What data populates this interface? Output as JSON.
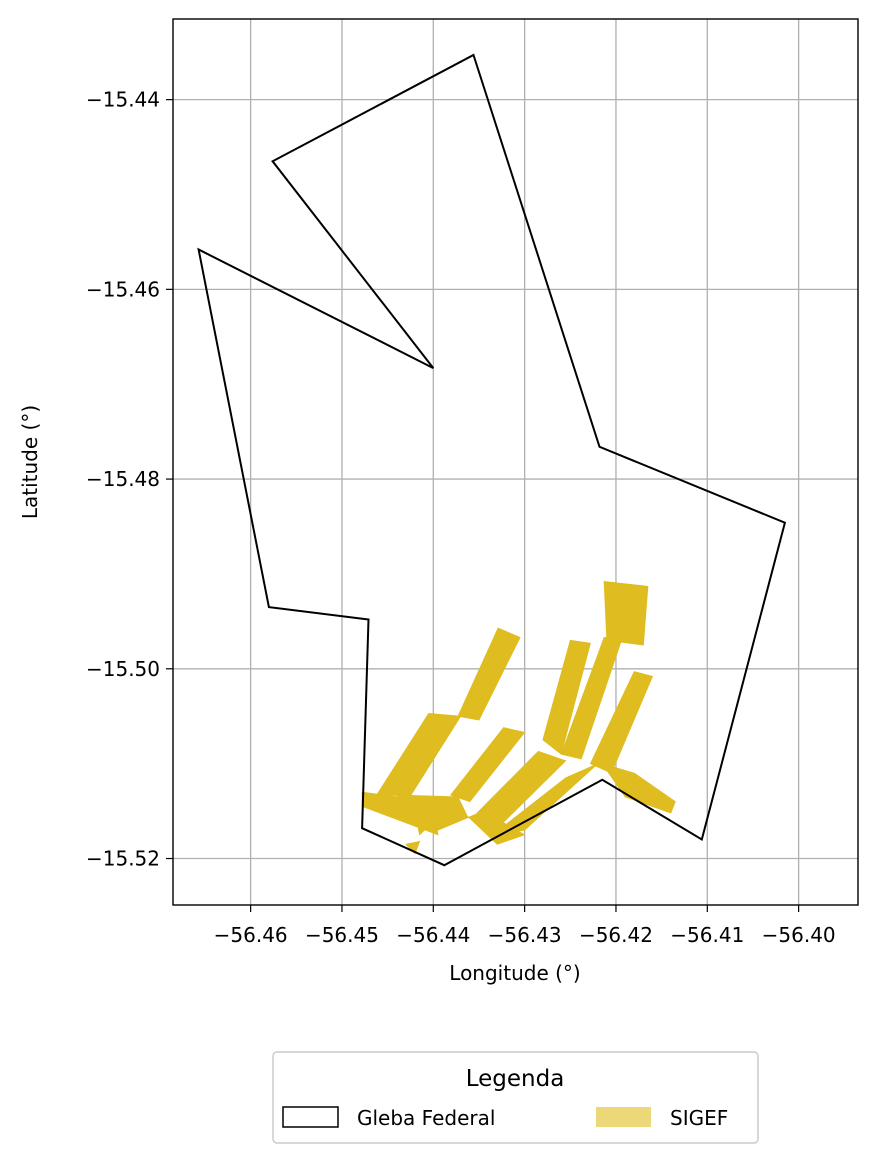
{
  "chart_data": {
    "type": "map",
    "xlabel": "Longitude (°)",
    "ylabel": "Latitude (°)",
    "xlim": [
      -56.4685,
      -56.3935
    ],
    "ylim": [
      -15.5249,
      -15.4315
    ],
    "grid": true,
    "x_ticks": [
      -56.46,
      -56.45,
      -56.44,
      -56.43,
      -56.42,
      -56.41,
      -56.4
    ],
    "x_tick_labels": [
      "−56.46",
      "−56.45",
      "−56.44",
      "−56.43",
      "−56.42",
      "−56.41",
      "−56.40"
    ],
    "y_ticks": [
      -15.44,
      -15.46,
      -15.48,
      -15.5,
      -15.52
    ],
    "y_tick_labels": [
      "−15.44",
      "−15.46",
      "−15.48",
      "−15.50",
      "−15.52"
    ],
    "legend": {
      "title": "Legenda",
      "placement": "bottom-center",
      "entries": [
        {
          "label": "Gleba Federal",
          "style": "outline",
          "color": "#000000"
        },
        {
          "label": "SIGEF",
          "style": "fill",
          "color": "#DFBC1F"
        }
      ]
    },
    "gleba_federal": {
      "name": "Gleba Federal",
      "stroke": "#000000",
      "coordinates": [
        [
          -56.4356,
          -15.4353
        ],
        [
          -56.4218,
          -15.4766
        ],
        [
          -56.4015,
          -15.4846
        ],
        [
          -56.4106,
          -15.518
        ],
        [
          -56.4215,
          -15.5117
        ],
        [
          -56.4388,
          -15.5207
        ],
        [
          -56.4478,
          -15.5168
        ],
        [
          -56.4471,
          -15.4948
        ],
        [
          -56.458,
          -15.4935
        ],
        [
          -56.4657,
          -15.4558
        ],
        [
          -56.44,
          -15.4683
        ],
        [
          -56.4576,
          -15.4465
        ]
      ]
    },
    "sigef": {
      "name": "SIGEF",
      "fill": "#DFBC1F",
      "parcels": [
        [
          [
            -56.4478,
            -15.513
          ],
          [
            -56.44,
            -15.514
          ],
          [
            -56.4395,
            -15.5175
          ],
          [
            -56.4478,
            -15.5145
          ]
        ],
        [
          [
            -56.4462,
            -15.5133
          ],
          [
            -56.4405,
            -15.5047
          ],
          [
            -56.437,
            -15.505
          ],
          [
            -56.4425,
            -15.5134
          ]
        ],
        [
          [
            -56.4423,
            -15.5137
          ],
          [
            -56.4375,
            -15.5137
          ],
          [
            -56.4415,
            -15.5175
          ]
        ],
        [
          [
            -56.444,
            -15.5133
          ],
          [
            -56.4373,
            -15.5135
          ],
          [
            -56.4363,
            -15.5155
          ],
          [
            -56.433,
            -15.5185
          ],
          [
            -56.43,
            -15.5175
          ],
          [
            -56.4345,
            -15.515
          ],
          [
            -56.4395,
            -15.517
          ]
        ],
        [
          [
            -56.4381,
            -15.5133
          ],
          [
            -56.4323,
            -15.5062
          ],
          [
            -56.43,
            -15.5067
          ],
          [
            -56.436,
            -15.514
          ]
        ],
        [
          [
            -56.4355,
            -15.5155
          ],
          [
            -56.4285,
            -15.5087
          ],
          [
            -56.4255,
            -15.5097
          ],
          [
            -56.4335,
            -15.5173
          ]
        ],
        [
          [
            -56.4335,
            -15.5175
          ],
          [
            -56.4255,
            -15.5115
          ],
          [
            -56.422,
            -15.51
          ],
          [
            -56.43,
            -15.517
          ]
        ],
        [
          [
            -56.4373,
            -15.505
          ],
          [
            -56.4329,
            -15.4957
          ],
          [
            -56.4305,
            -15.4967
          ],
          [
            -56.435,
            -15.5054
          ]
        ],
        [
          [
            -56.428,
            -15.5075
          ],
          [
            -56.425,
            -15.497
          ],
          [
            -56.4228,
            -15.4973
          ],
          [
            -56.426,
            -15.509
          ]
        ],
        [
          [
            -56.426,
            -15.509
          ],
          [
            -56.4213,
            -15.4967
          ],
          [
            -56.4193,
            -15.4967
          ],
          [
            -56.4238,
            -15.5095
          ]
        ],
        [
          [
            -56.4213,
            -15.4908
          ],
          [
            -56.421,
            -15.497
          ],
          [
            -56.417,
            -15.4975
          ],
          [
            -56.4165,
            -15.4913
          ]
        ],
        [
          [
            -56.4228,
            -15.51
          ],
          [
            -56.418,
            -15.5003
          ],
          [
            -56.416,
            -15.5008
          ],
          [
            -56.4205,
            -15.511
          ]
        ],
        [
          [
            -56.4215,
            -15.51
          ],
          [
            -56.418,
            -15.511
          ],
          [
            -56.4135,
            -15.514
          ],
          [
            -56.414,
            -15.5152
          ],
          [
            -56.419,
            -15.5135
          ]
        ],
        [
          [
            -56.443,
            -15.5185
          ],
          [
            -56.4415,
            -15.5182
          ],
          [
            -56.442,
            -15.5195
          ]
        ]
      ]
    }
  }
}
